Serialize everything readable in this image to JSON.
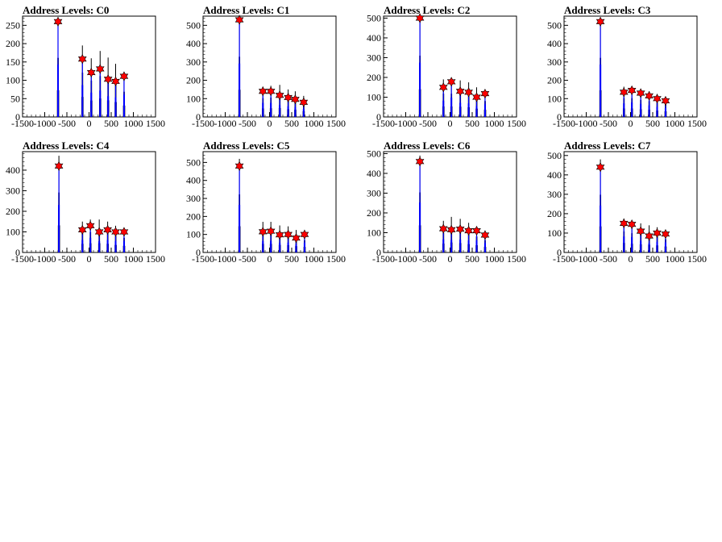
{
  "chart_data": [
    {
      "type": "histogram",
      "title": "Address Levels: C0",
      "xlim": [
        -1500,
        1500
      ],
      "ylim": [
        0,
        275
      ],
      "x_ticks": [
        "-1500",
        "-1000",
        "-500",
        "0",
        "500",
        "1000",
        "1500"
      ],
      "y_ticks": [
        "0",
        "50",
        "100",
        "150",
        "200",
        "250"
      ],
      "peaks": [
        {
          "x": -700,
          "y": 260
        },
        {
          "x": -150,
          "y": 158
        },
        {
          "x": 50,
          "y": 121
        },
        {
          "x": 250,
          "y": 131
        },
        {
          "x": 430,
          "y": 103
        },
        {
          "x": 600,
          "y": 97
        },
        {
          "x": 790,
          "y": 111
        }
      ],
      "black_peaks": [
        {
          "x": -700,
          "y": 260
        },
        {
          "x": -150,
          "y": 195
        },
        {
          "x": 50,
          "y": 160
        },
        {
          "x": 250,
          "y": 180
        },
        {
          "x": 430,
          "y": 162
        },
        {
          "x": 600,
          "y": 145
        },
        {
          "x": 790,
          "y": 111
        }
      ]
    },
    {
      "type": "histogram",
      "title": "Address Levels: C1",
      "xlim": [
        -1500,
        1500
      ],
      "ylim": [
        0,
        550
      ],
      "x_ticks": [
        "-1500",
        "-1000",
        "-500",
        "0",
        "500",
        "1000",
        "1500"
      ],
      "y_ticks": [
        "0",
        "100",
        "200",
        "300",
        "400",
        "500"
      ],
      "peaks": [
        {
          "x": -680,
          "y": 530
        },
        {
          "x": -150,
          "y": 140
        },
        {
          "x": 30,
          "y": 140
        },
        {
          "x": 230,
          "y": 118
        },
        {
          "x": 420,
          "y": 106
        },
        {
          "x": 580,
          "y": 96
        },
        {
          "x": 770,
          "y": 80
        }
      ],
      "black_peaks": [
        {
          "x": -680,
          "y": 530
        },
        {
          "x": -150,
          "y": 165
        },
        {
          "x": 30,
          "y": 170
        },
        {
          "x": 230,
          "y": 175
        },
        {
          "x": 420,
          "y": 150
        },
        {
          "x": 580,
          "y": 140
        },
        {
          "x": 770,
          "y": 115
        }
      ]
    },
    {
      "type": "histogram",
      "title": "Address Levels: C2",
      "xlim": [
        -1500,
        1500
      ],
      "ylim": [
        0,
        510
      ],
      "x_ticks": [
        "-1500",
        "-1000",
        "-500",
        "0",
        "500",
        "1000",
        "1500"
      ],
      "y_ticks": [
        "0",
        "100",
        "200",
        "300",
        "400",
        "500"
      ],
      "peaks": [
        {
          "x": -680,
          "y": 500
        },
        {
          "x": -150,
          "y": 150
        },
        {
          "x": 30,
          "y": 178
        },
        {
          "x": 230,
          "y": 130
        },
        {
          "x": 420,
          "y": 125
        },
        {
          "x": 600,
          "y": 100
        },
        {
          "x": 790,
          "y": 118
        }
      ],
      "black_peaks": [
        {
          "x": -680,
          "y": 500
        },
        {
          "x": -150,
          "y": 190
        },
        {
          "x": 30,
          "y": 190
        },
        {
          "x": 230,
          "y": 185
        },
        {
          "x": 420,
          "y": 175
        },
        {
          "x": 600,
          "y": 150
        },
        {
          "x": 790,
          "y": 130
        }
      ]
    },
    {
      "type": "histogram",
      "title": "Address Levels: C3",
      "xlim": [
        -1500,
        1500
      ],
      "ylim": [
        0,
        550
      ],
      "x_ticks": [
        "-1500",
        "-1000",
        "-500",
        "0",
        "500",
        "1000",
        "1500"
      ],
      "y_ticks": [
        "0",
        "100",
        "200",
        "300",
        "400",
        "500"
      ],
      "peaks": [
        {
          "x": -680,
          "y": 520
        },
        {
          "x": -150,
          "y": 135
        },
        {
          "x": 30,
          "y": 145
        },
        {
          "x": 230,
          "y": 130
        },
        {
          "x": 420,
          "y": 115
        },
        {
          "x": 600,
          "y": 100
        },
        {
          "x": 790,
          "y": 88
        }
      ],
      "black_peaks": [
        {
          "x": -680,
          "y": 520
        },
        {
          "x": -150,
          "y": 165
        },
        {
          "x": 30,
          "y": 165
        },
        {
          "x": 230,
          "y": 150
        },
        {
          "x": 420,
          "y": 140
        },
        {
          "x": 600,
          "y": 125
        },
        {
          "x": 790,
          "y": 110
        }
      ]
    },
    {
      "type": "histogram",
      "title": "Address Levels: C4",
      "xlim": [
        -1500,
        1500
      ],
      "ylim": [
        0,
        490
      ],
      "x_ticks": [
        "-1500",
        "-1000",
        "-500",
        "0",
        "500",
        "1000",
        "1500"
      ],
      "y_ticks": [
        "0",
        "100",
        "200",
        "300",
        "400"
      ],
      "peaks": [
        {
          "x": -680,
          "y": 420
        },
        {
          "x": -150,
          "y": 110
        },
        {
          "x": 30,
          "y": 130
        },
        {
          "x": 230,
          "y": 100
        },
        {
          "x": 420,
          "y": 110
        },
        {
          "x": 600,
          "y": 100
        },
        {
          "x": 790,
          "y": 100
        }
      ],
      "black_peaks": [
        {
          "x": -680,
          "y": 470
        },
        {
          "x": -150,
          "y": 150
        },
        {
          "x": 30,
          "y": 160
        },
        {
          "x": 230,
          "y": 160
        },
        {
          "x": 420,
          "y": 150
        },
        {
          "x": 600,
          "y": 130
        },
        {
          "x": 790,
          "y": 115
        }
      ]
    },
    {
      "type": "histogram",
      "title": "Address Levels: C5",
      "xlim": [
        -1500,
        1500
      ],
      "ylim": [
        0,
        560
      ],
      "x_ticks": [
        "-1500",
        "-1000",
        "-500",
        "0",
        "500",
        "1000",
        "1500"
      ],
      "y_ticks": [
        "0",
        "100",
        "200",
        "300",
        "400",
        "500"
      ],
      "peaks": [
        {
          "x": -680,
          "y": 480
        },
        {
          "x": -150,
          "y": 115
        },
        {
          "x": 30,
          "y": 118
        },
        {
          "x": 230,
          "y": 98
        },
        {
          "x": 420,
          "y": 100
        },
        {
          "x": 600,
          "y": 80
        },
        {
          "x": 790,
          "y": 100
        }
      ],
      "black_peaks": [
        {
          "x": -680,
          "y": 520
        },
        {
          "x": -150,
          "y": 170
        },
        {
          "x": 30,
          "y": 170
        },
        {
          "x": 230,
          "y": 150
        },
        {
          "x": 420,
          "y": 145
        },
        {
          "x": 600,
          "y": 125
        },
        {
          "x": 790,
          "y": 110
        }
      ]
    },
    {
      "type": "histogram",
      "title": "Address Levels: C6",
      "xlim": [
        -1500,
        1500
      ],
      "ylim": [
        0,
        510
      ],
      "x_ticks": [
        "-1500",
        "-1000",
        "-500",
        "0",
        "500",
        "1000",
        "1500"
      ],
      "y_ticks": [
        "0",
        "100",
        "200",
        "300",
        "400",
        "500"
      ],
      "peaks": [
        {
          "x": -680,
          "y": 460
        },
        {
          "x": -150,
          "y": 120
        },
        {
          "x": 30,
          "y": 115
        },
        {
          "x": 230,
          "y": 118
        },
        {
          "x": 420,
          "y": 110
        },
        {
          "x": 600,
          "y": 110
        },
        {
          "x": 790,
          "y": 88
        }
      ],
      "black_peaks": [
        {
          "x": -680,
          "y": 490
        },
        {
          "x": -150,
          "y": 160
        },
        {
          "x": 30,
          "y": 180
        },
        {
          "x": 230,
          "y": 170
        },
        {
          "x": 420,
          "y": 150
        },
        {
          "x": 600,
          "y": 130
        },
        {
          "x": 790,
          "y": 100
        }
      ]
    },
    {
      "type": "histogram",
      "title": "Address Levels: C7",
      "xlim": [
        -1500,
        1500
      ],
      "ylim": [
        0,
        520
      ],
      "x_ticks": [
        "-1500",
        "-1000",
        "-500",
        "0",
        "500",
        "1000",
        "1500"
      ],
      "y_ticks": [
        "0",
        "100",
        "200",
        "300",
        "400",
        "500"
      ],
      "peaks": [
        {
          "x": -680,
          "y": 440
        },
        {
          "x": -150,
          "y": 150
        },
        {
          "x": 30,
          "y": 145
        },
        {
          "x": 230,
          "y": 110
        },
        {
          "x": 420,
          "y": 85
        },
        {
          "x": 600,
          "y": 100
        },
        {
          "x": 790,
          "y": 95
        }
      ],
      "black_peaks": [
        {
          "x": -680,
          "y": 480
        },
        {
          "x": -150,
          "y": 175
        },
        {
          "x": 30,
          "y": 160
        },
        {
          "x": 230,
          "y": 150
        },
        {
          "x": 420,
          "y": 140
        },
        {
          "x": 600,
          "y": 130
        },
        {
          "x": 790,
          "y": 110
        }
      ]
    }
  ],
  "colors": {
    "blue_series": "#0000ff",
    "black_series": "#000000",
    "marker": "#ff0000"
  }
}
